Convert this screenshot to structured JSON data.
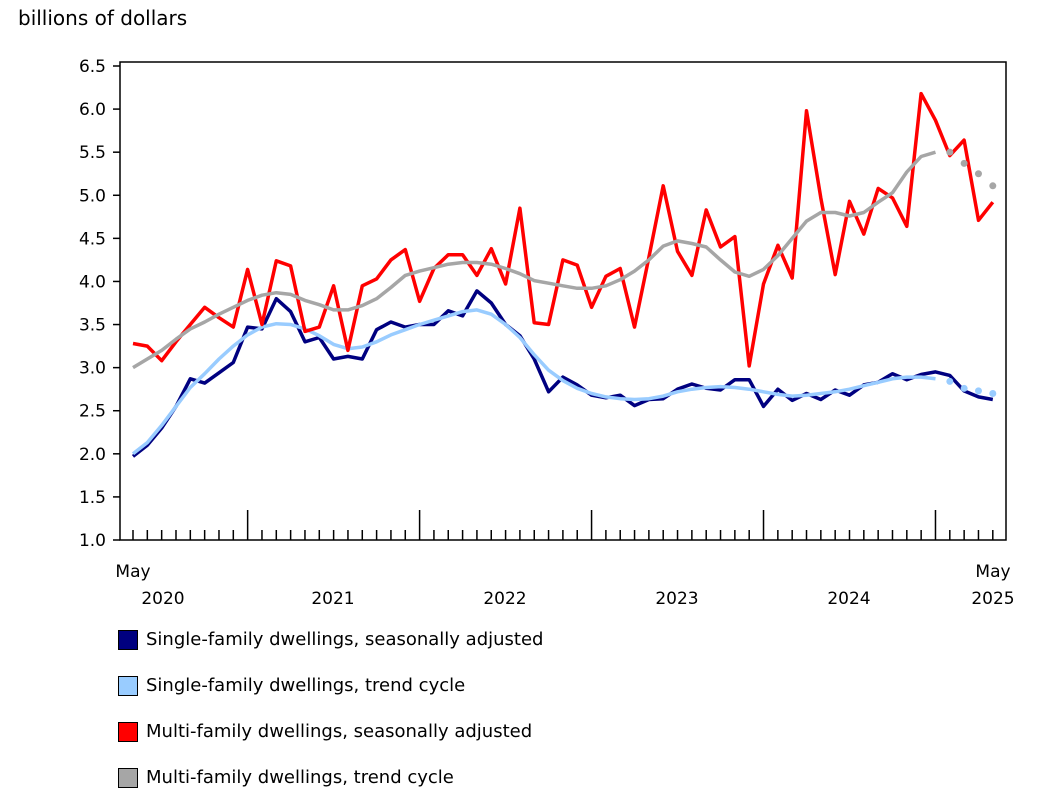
{
  "chart_data": {
    "type": "line",
    "ylabel": "billions of dollars",
    "ylim": [
      1.0,
      6.5
    ],
    "yticks": [
      "1.0",
      "1.5",
      "2.0",
      "2.5",
      "3.0",
      "3.5",
      "4.0",
      "4.5",
      "5.0",
      "5.5",
      "6.0",
      "6.5"
    ],
    "x_start": "May 2020",
    "x_end": "May 2025",
    "frequency": "monthly",
    "xtick_labels": [
      {
        "top": "May",
        "bottom": "2020"
      },
      {
        "top": "",
        "bottom": "2021"
      },
      {
        "top": "",
        "bottom": "2022"
      },
      {
        "top": "",
        "bottom": "2023"
      },
      {
        "top": "",
        "bottom": "2024"
      },
      {
        "top": "May",
        "bottom": "2025"
      }
    ],
    "grid": false,
    "legend_position": "bottom",
    "trend_dotted_last_months": 4,
    "series": [
      {
        "name": "Single-family dwellings, seasonally adjusted",
        "color": "#000080",
        "style": "solid",
        "values": [
          1.97,
          2.1,
          2.3,
          2.55,
          2.87,
          2.82,
          2.94,
          3.06,
          3.47,
          3.45,
          3.8,
          3.65,
          3.3,
          3.35,
          3.1,
          3.13,
          3.1,
          3.44,
          3.53,
          3.47,
          3.5,
          3.5,
          3.66,
          3.6,
          3.89,
          3.75,
          3.5,
          3.37,
          3.1,
          2.72,
          2.89,
          2.8,
          2.68,
          2.65,
          2.68,
          2.56,
          2.63,
          2.64,
          2.75,
          2.81,
          2.76,
          2.74,
          2.86,
          2.86,
          2.55,
          2.75,
          2.62,
          2.7,
          2.63,
          2.74,
          2.68,
          2.8,
          2.83,
          2.93,
          2.86,
          2.92,
          2.95,
          2.91,
          2.73,
          2.66,
          2.63
        ]
      },
      {
        "name": "Single-family dwellings, trend cycle",
        "color": "#99ccff",
        "style": "trend",
        "values": [
          2.0,
          2.13,
          2.33,
          2.55,
          2.77,
          2.93,
          3.1,
          3.25,
          3.38,
          3.47,
          3.51,
          3.5,
          3.45,
          3.37,
          3.27,
          3.22,
          3.24,
          3.3,
          3.38,
          3.44,
          3.5,
          3.55,
          3.6,
          3.65,
          3.67,
          3.62,
          3.5,
          3.35,
          3.15,
          2.97,
          2.85,
          2.76,
          2.7,
          2.66,
          2.64,
          2.63,
          2.64,
          2.67,
          2.72,
          2.75,
          2.77,
          2.78,
          2.77,
          2.75,
          2.72,
          2.69,
          2.67,
          2.68,
          2.7,
          2.72,
          2.75,
          2.79,
          2.83,
          2.87,
          2.89,
          2.89,
          2.87,
          2.84,
          2.76,
          2.73,
          2.7
        ]
      },
      {
        "name": "Multi-family dwellings, seasonally adjusted",
        "color": "#ff0000",
        "style": "solid",
        "values": [
          3.28,
          3.25,
          3.08,
          3.3,
          3.5,
          3.7,
          3.58,
          3.47,
          4.14,
          3.5,
          4.24,
          4.18,
          3.42,
          3.47,
          3.95,
          3.2,
          3.95,
          4.03,
          4.25,
          4.37,
          3.77,
          4.15,
          4.31,
          4.31,
          4.07,
          4.38,
          3.97,
          4.85,
          3.52,
          3.5,
          4.25,
          4.19,
          3.7,
          4.06,
          4.15,
          3.47,
          4.28,
          5.11,
          4.35,
          4.07,
          4.83,
          4.4,
          4.52,
          3.02,
          3.97,
          4.42,
          4.04,
          5.98,
          4.97,
          4.08,
          4.93,
          4.55,
          5.08,
          4.97,
          4.64,
          6.18,
          5.87,
          5.46,
          5.64,
          4.71,
          4.92
        ]
      },
      {
        "name": "Multi-family dwellings, trend cycle",
        "color": "#a6a6a6",
        "style": "trend",
        "values": [
          3.0,
          3.1,
          3.2,
          3.33,
          3.45,
          3.53,
          3.62,
          3.7,
          3.78,
          3.84,
          3.87,
          3.85,
          3.78,
          3.73,
          3.67,
          3.67,
          3.72,
          3.8,
          3.93,
          4.07,
          4.12,
          4.16,
          4.2,
          4.22,
          4.22,
          4.2,
          4.15,
          4.09,
          4.01,
          3.98,
          3.95,
          3.92,
          3.92,
          3.95,
          4.02,
          4.12,
          4.25,
          4.41,
          4.47,
          4.44,
          4.4,
          4.25,
          4.11,
          4.06,
          4.14,
          4.3,
          4.5,
          4.7,
          4.8,
          4.8,
          4.76,
          4.8,
          4.92,
          5.03,
          5.27,
          5.45,
          5.5,
          5.5,
          5.37,
          5.25,
          5.11
        ]
      }
    ]
  }
}
